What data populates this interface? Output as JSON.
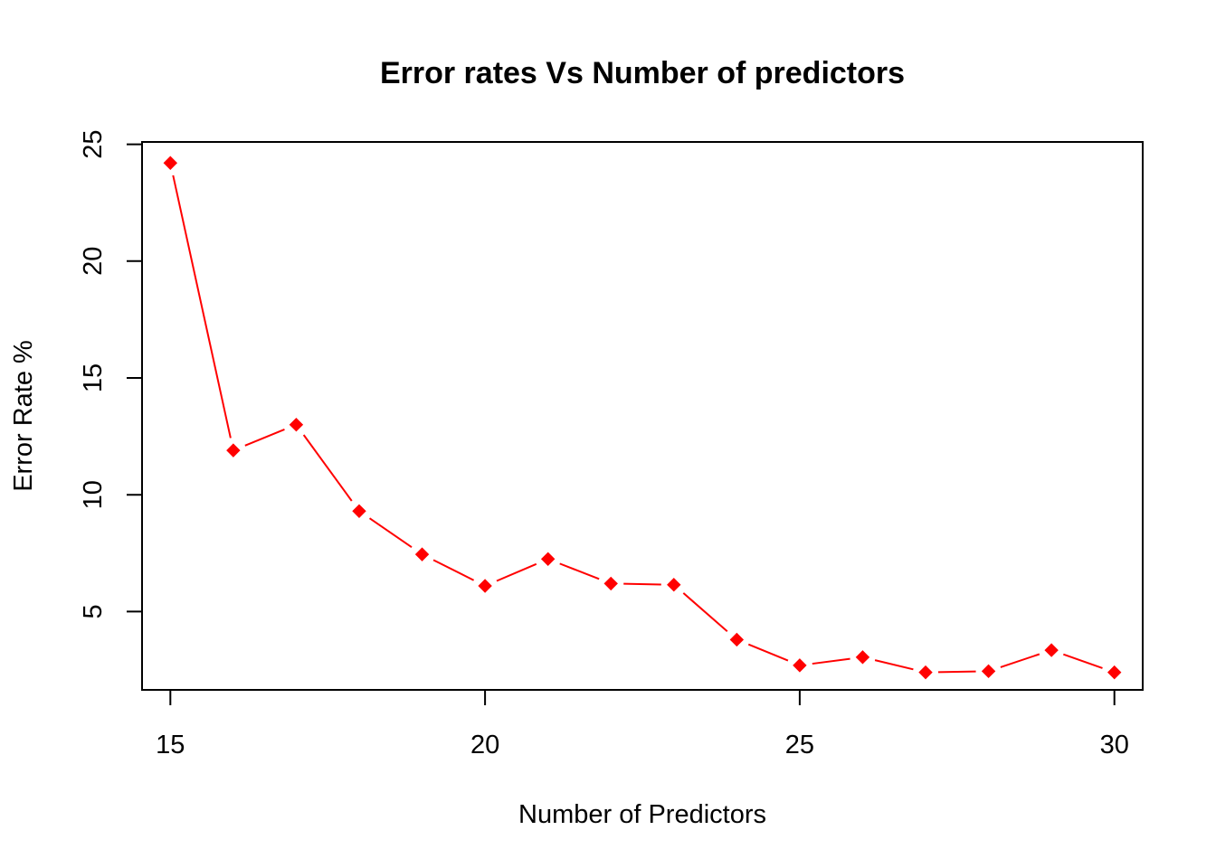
{
  "chart_data": {
    "type": "line",
    "title": "Error rates Vs Number of predictors",
    "xlabel": "Number of Predictors",
    "ylabel": "Error Rate %",
    "xlim": [
      14.55,
      30.45
    ],
    "ylim": [
      1.65,
      25.1
    ],
    "xticks": [
      15,
      20,
      25,
      30
    ],
    "yticks": [
      5,
      10,
      15,
      20,
      25
    ],
    "xtick_labels": [
      "15",
      "20",
      "25",
      "30"
    ],
    "ytick_labels": [
      "5",
      "10",
      "15",
      "20",
      "25"
    ],
    "grid": false,
    "line_style": "dashed-with-gaps",
    "series": [
      {
        "color": "#ff0000",
        "marker": "diamond",
        "x": [
          15,
          16,
          17,
          18,
          19,
          20,
          21,
          22,
          23,
          24,
          25,
          26,
          27,
          28,
          29,
          30
        ],
        "y": [
          24.2,
          11.9,
          13.0,
          9.3,
          7.45,
          6.1,
          7.25,
          6.2,
          6.15,
          3.8,
          2.7,
          3.05,
          2.4,
          2.45,
          3.35,
          2.4
        ]
      }
    ]
  }
}
